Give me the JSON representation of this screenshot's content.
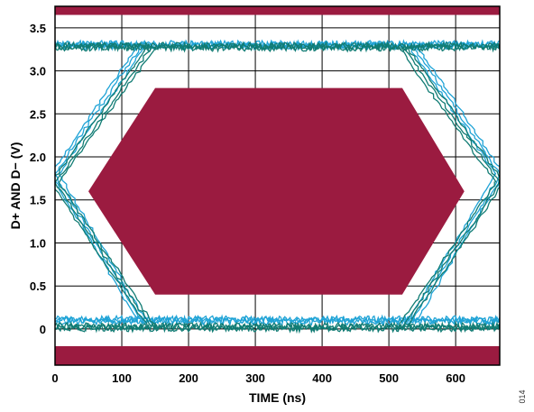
{
  "chart_data": {
    "type": "eye-diagram",
    "title": "",
    "xlabel": "TIME (ns)",
    "ylabel": "D+ AND D− (V)",
    "xlim": [
      0,
      666
    ],
    "ylim": [
      -0.42,
      3.75
    ],
    "x_ticks": [
      "0",
      "100",
      "200",
      "300",
      "400",
      "500",
      "600"
    ],
    "y_ticks": [
      "0",
      "0.5",
      "1.0",
      "1.5",
      "2.0",
      "2.5",
      "3.0",
      "3.5"
    ],
    "grid": true,
    "figure_id": "014",
    "colors": {
      "mask": "#9b1b40",
      "trace_light": "#1fa3d6",
      "trace_dark": "#117c74",
      "grid": "#000000"
    },
    "mask_regions": [
      {
        "name": "top-keep-out",
        "y_range": [
          3.65,
          3.75
        ]
      },
      {
        "name": "bottom-keep-out",
        "y_range": [
          -0.42,
          -0.2
        ]
      },
      {
        "name": "eye-opening-hexagon",
        "vertices": [
          [
            50,
            1.6
          ],
          [
            150,
            2.8
          ],
          [
            520,
            2.8
          ],
          [
            613,
            1.6
          ],
          [
            520,
            0.4
          ],
          [
            150,
            0.4
          ]
        ]
      }
    ],
    "series": [
      {
        "color": "trace_light",
        "high_level": 3.3,
        "low_level": 0.1,
        "crossings": [
          [
            0,
            1.8
          ],
          [
            666,
            1.8
          ]
        ],
        "transitions": [
          [
            0,
            130
          ],
          [
            535,
            666
          ]
        ]
      },
      {
        "color": "trace_dark",
        "high_level": 3.28,
        "low_level": 0.02,
        "crossings": [
          [
            0,
            1.7
          ],
          [
            666,
            1.7
          ]
        ],
        "transitions": [
          [
            0,
            145
          ],
          [
            520,
            666
          ]
        ]
      }
    ]
  }
}
